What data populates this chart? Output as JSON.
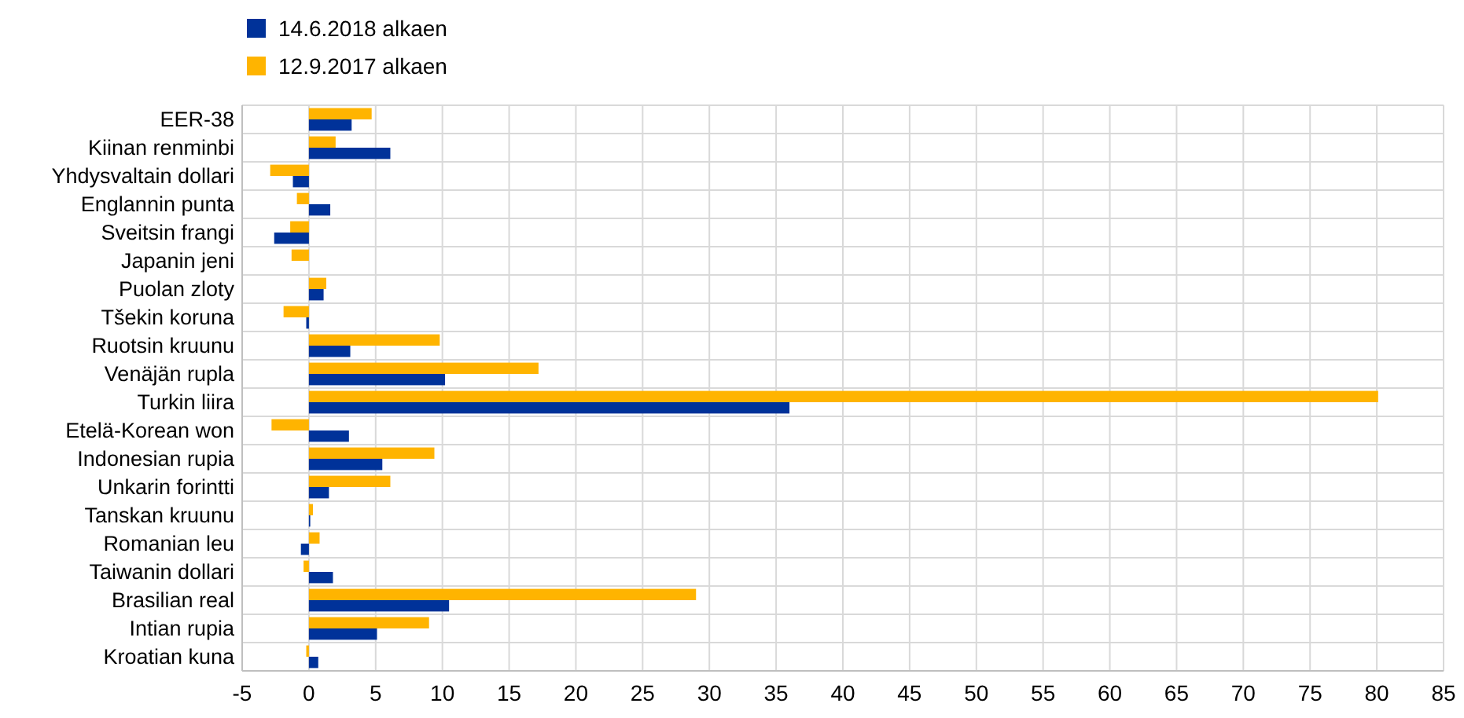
{
  "chart_data": {
    "type": "bar",
    "orientation": "horizontal",
    "categories": [
      "EER-38",
      "Kiinan renminbi",
      "Yhdysvaltain dollari",
      "Englannin punta",
      "Sveitsin frangi",
      "Japanin jeni",
      "Puolan zloty",
      "Tšekin koruna",
      "Ruotsin kruunu",
      "Venäjän rupla",
      "Turkin liira",
      "Etelä-Korean won",
      "Indonesian rupia",
      "Unkarin forintti",
      "Tanskan kruunu",
      "Romanian leu",
      "Taiwanin dollari",
      "Brasilian real",
      "Intian rupia",
      "Kroatian kuna"
    ],
    "series": [
      {
        "name": "14.6.2018 alkaen",
        "color": "#003299",
        "values": [
          3.2,
          6.1,
          -1.2,
          1.6,
          -2.6,
          0,
          1.1,
          -0.2,
          3.1,
          10.2,
          36.0,
          3.0,
          5.5,
          1.5,
          0.1,
          -0.6,
          1.8,
          10.5,
          5.1,
          0.7
        ]
      },
      {
        "name": "12.9.2017 alkaen",
        "color": "#ffb400",
        "values": [
          4.7,
          2.0,
          -2.9,
          -0.9,
          -1.4,
          -1.3,
          1.3,
          -1.9,
          9.8,
          17.2,
          80.1,
          -2.8,
          9.4,
          6.1,
          0.3,
          0.8,
          -0.4,
          29.0,
          9.0,
          -0.2
        ]
      }
    ],
    "xlim": [
      -5,
      85
    ],
    "xticks": [
      -5,
      0,
      5,
      10,
      15,
      20,
      25,
      30,
      35,
      40,
      45,
      50,
      55,
      60,
      65,
      70,
      75,
      80,
      85
    ],
    "grid": true,
    "legend": "top left"
  }
}
